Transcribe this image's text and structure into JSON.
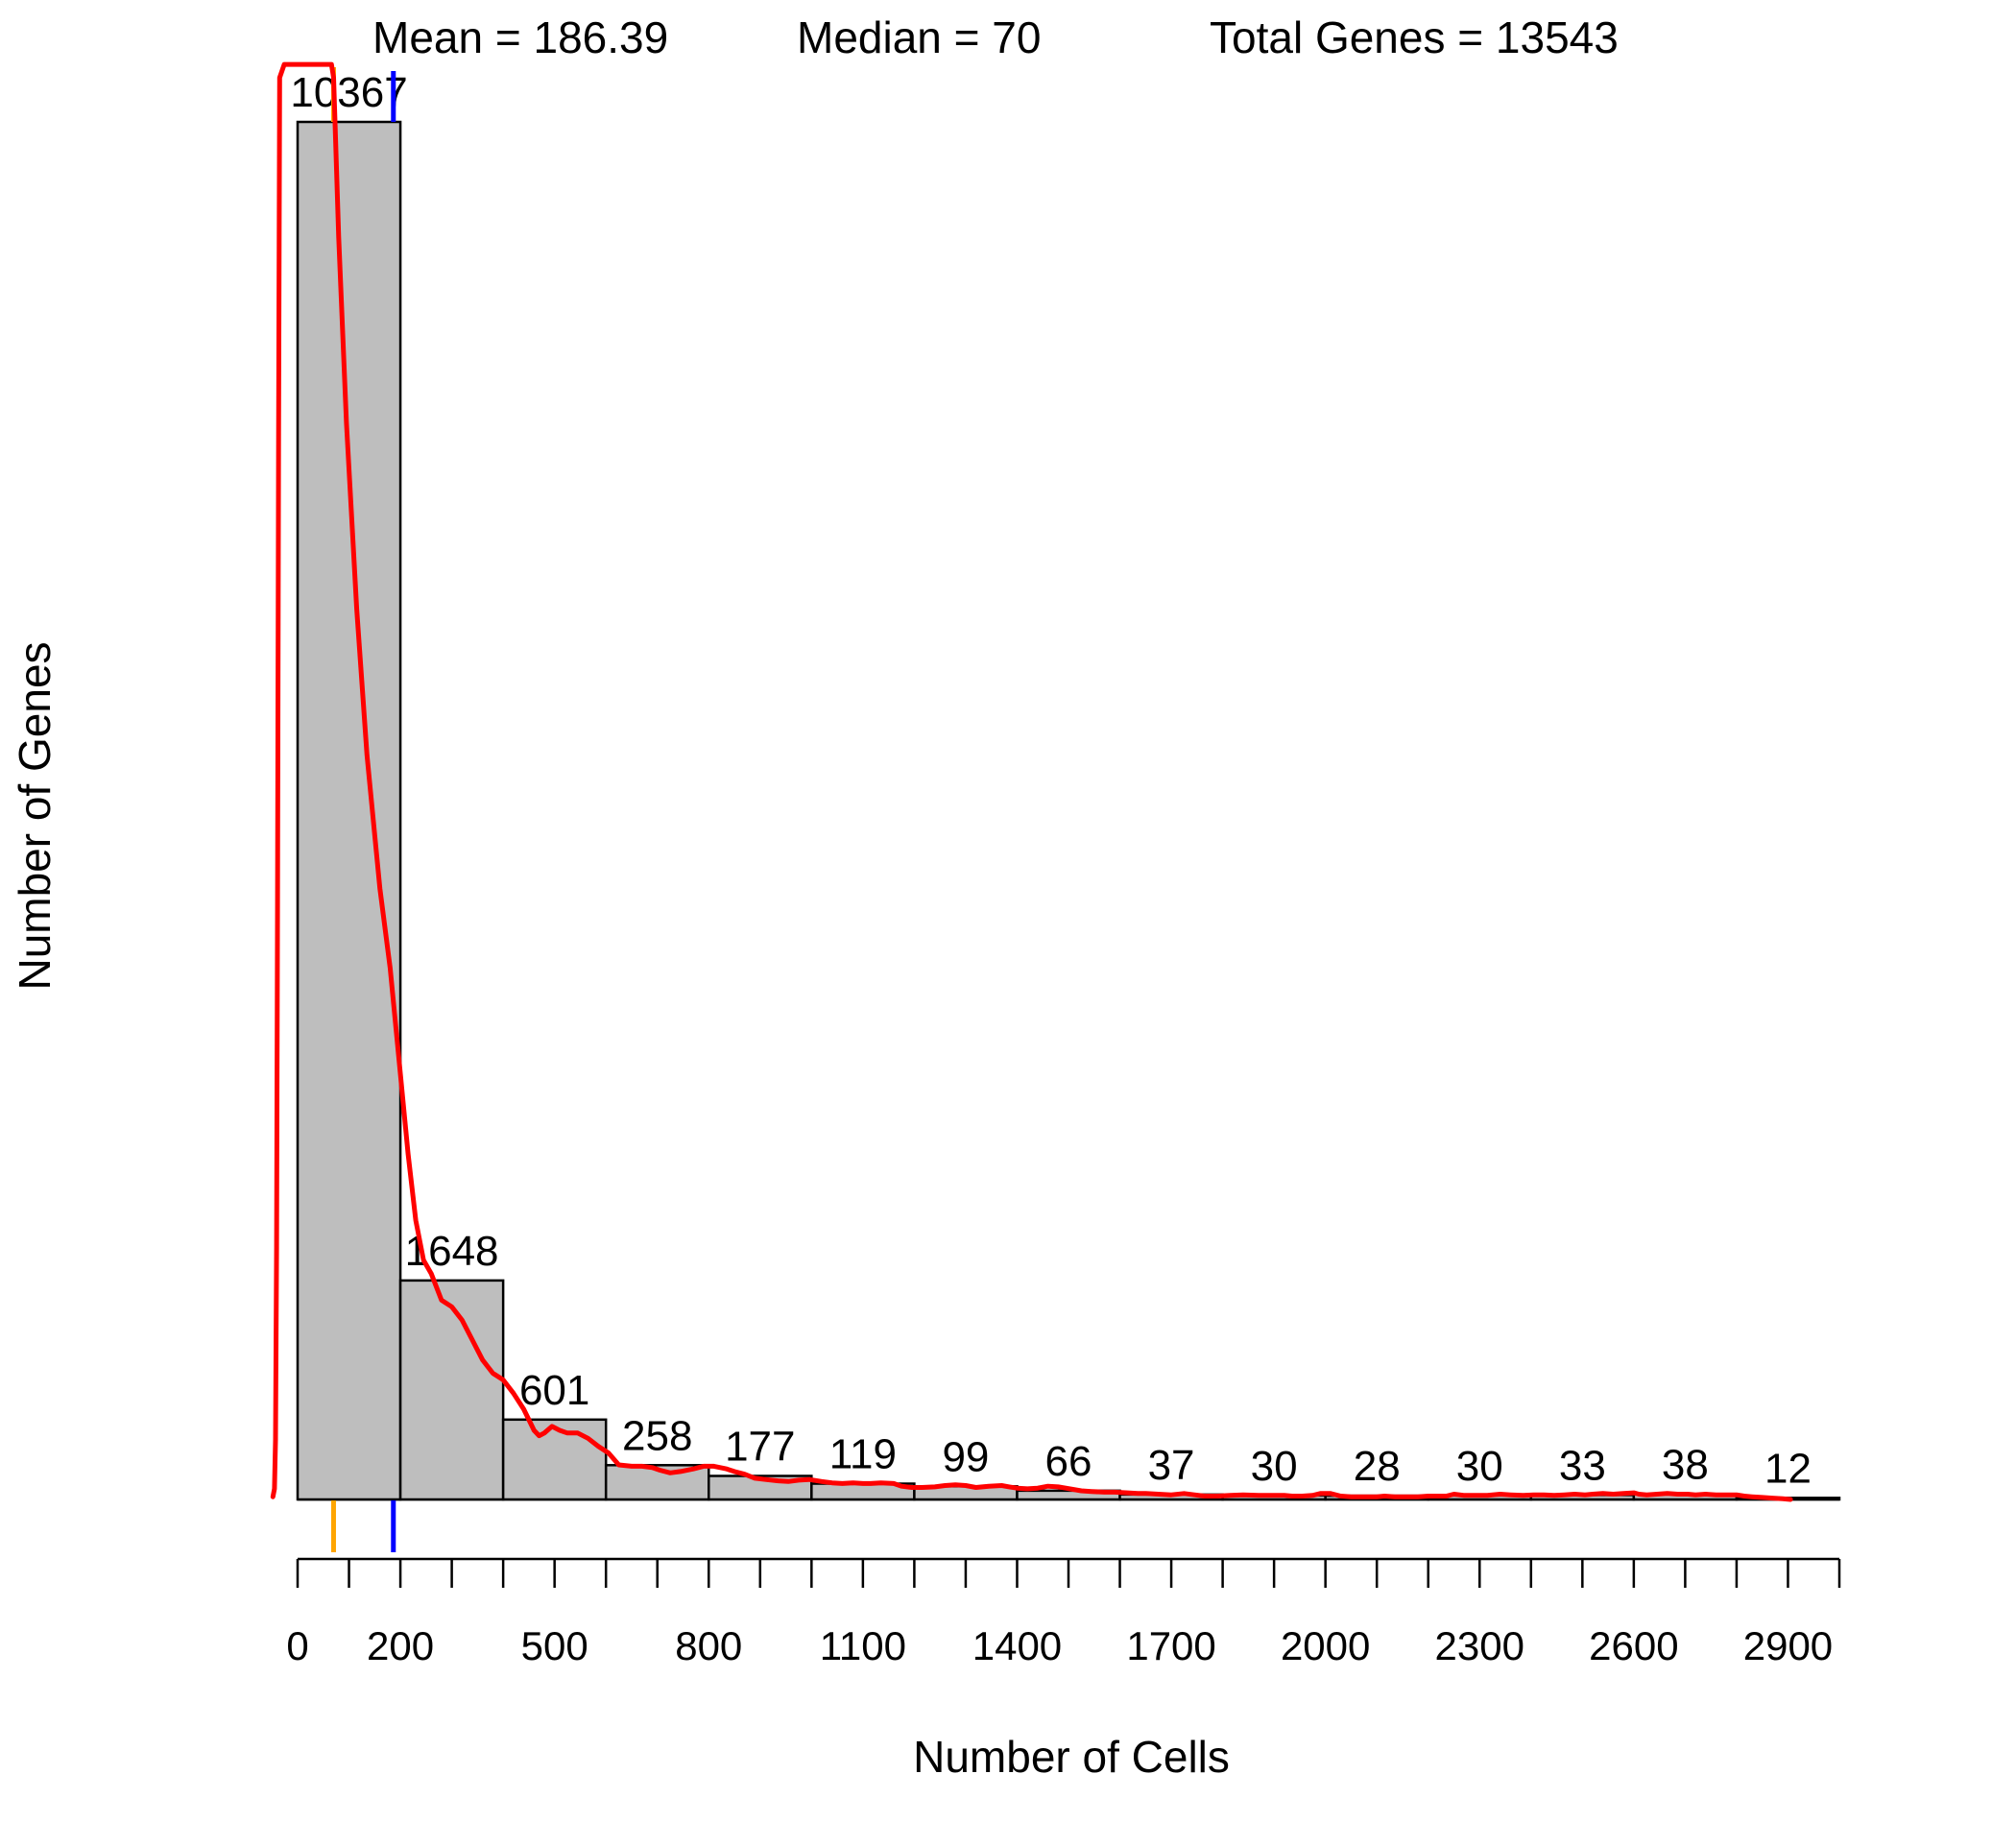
{
  "chart_data": {
    "type": "bar",
    "xlabel": "Number of Cells",
    "ylabel": "Number of Genes",
    "bin_width": 200,
    "bins": [
      {
        "start": 0,
        "end": 200,
        "count": 10367
      },
      {
        "start": 200,
        "end": 400,
        "count": 1648
      },
      {
        "start": 400,
        "end": 600,
        "count": 601
      },
      {
        "start": 600,
        "end": 800,
        "count": 258
      },
      {
        "start": 800,
        "end": 1000,
        "count": 177
      },
      {
        "start": 1000,
        "end": 1200,
        "count": 119
      },
      {
        "start": 1200,
        "end": 1400,
        "count": 99
      },
      {
        "start": 1400,
        "end": 1600,
        "count": 66
      },
      {
        "start": 1600,
        "end": 1800,
        "count": 37
      },
      {
        "start": 1800,
        "end": 2000,
        "count": 30
      },
      {
        "start": 2000,
        "end": 2200,
        "count": 28
      },
      {
        "start": 2200,
        "end": 2400,
        "count": 30
      },
      {
        "start": 2400,
        "end": 2600,
        "count": 33
      },
      {
        "start": 2600,
        "end": 2800,
        "count": 38
      },
      {
        "start": 2800,
        "end": 3000,
        "count": 12
      }
    ],
    "xlim": [
      0,
      3000
    ],
    "ylim": [
      0,
      10367
    ],
    "x_tick_positions": [
      0,
      100,
      200,
      300,
      400,
      500,
      600,
      700,
      800,
      900,
      1000,
      1100,
      1200,
      1300,
      1400,
      1500,
      1600,
      1700,
      1800,
      1900,
      2000,
      2100,
      2200,
      2300,
      2400,
      2500,
      2600,
      2700,
      2800,
      2900,
      3000
    ],
    "x_tick_labels": [
      {
        "value": 0,
        "label": "0"
      },
      {
        "value": 200,
        "label": "200"
      },
      {
        "value": 500,
        "label": "500"
      },
      {
        "value": 800,
        "label": "800"
      },
      {
        "value": 1100,
        "label": "1100"
      },
      {
        "value": 1400,
        "label": "1400"
      },
      {
        "value": 1700,
        "label": "1700"
      },
      {
        "value": 2000,
        "label": "2000"
      },
      {
        "value": 2300,
        "label": "2300"
      },
      {
        "value": 2600,
        "label": "2600"
      },
      {
        "value": 2900,
        "label": "2900"
      }
    ],
    "mean": {
      "value": 186.39,
      "label": "Mean = 186.39",
      "color": "#0000ff"
    },
    "median": {
      "value": 70,
      "label": "Median = 70",
      "color": "#ffa500"
    },
    "total": {
      "label": "Total Genes = 13543",
      "color": "#a020f0"
    },
    "density": {
      "color": "#ff0000",
      "points": [
        [
          -48,
          20
        ],
        [
          -45,
          80
        ],
        [
          -43,
          450
        ],
        [
          -41,
          1900
        ],
        [
          -39,
          4500
        ],
        [
          -37,
          8000
        ],
        [
          -35,
          10700
        ],
        [
          -26,
          10800
        ],
        [
          -23,
          10800
        ],
        [
          66,
          10800
        ],
        [
          70,
          10700
        ],
        [
          80,
          9500
        ],
        [
          95,
          8100
        ],
        [
          115,
          6700
        ],
        [
          135,
          5600
        ],
        [
          160,
          4600
        ],
        [
          180,
          4000
        ],
        [
          200,
          3200
        ],
        [
          215,
          2600
        ],
        [
          230,
          2100
        ],
        [
          245,
          1800
        ],
        [
          260,
          1700
        ],
        [
          280,
          1500
        ],
        [
          300,
          1450
        ],
        [
          320,
          1350
        ],
        [
          340,
          1200
        ],
        [
          360,
          1050
        ],
        [
          380,
          950
        ],
        [
          400,
          900
        ],
        [
          420,
          800
        ],
        [
          440,
          680
        ],
        [
          460,
          520
        ],
        [
          470,
          480
        ],
        [
          480,
          500
        ],
        [
          495,
          550
        ],
        [
          510,
          520
        ],
        [
          525,
          500
        ],
        [
          545,
          500
        ],
        [
          565,
          460
        ],
        [
          585,
          400
        ],
        [
          605,
          350
        ],
        [
          625,
          260
        ],
        [
          650,
          250
        ],
        [
          670,
          250
        ],
        [
          690,
          240
        ],
        [
          705,
          220
        ],
        [
          725,
          200
        ],
        [
          745,
          210
        ],
        [
          770,
          230
        ],
        [
          790,
          250
        ],
        [
          810,
          250
        ],
        [
          835,
          230
        ],
        [
          850,
          210
        ],
        [
          870,
          190
        ],
        [
          890,
          160
        ],
        [
          910,
          150
        ],
        [
          935,
          140
        ],
        [
          955,
          135
        ],
        [
          975,
          145
        ],
        [
          995,
          150
        ],
        [
          1020,
          135
        ],
        [
          1040,
          125
        ],
        [
          1060,
          120
        ],
        [
          1080,
          125
        ],
        [
          1100,
          120
        ],
        [
          1115,
          120
        ],
        [
          1135,
          125
        ],
        [
          1160,
          120
        ],
        [
          1175,
          100
        ],
        [
          1195,
          90
        ],
        [
          1215,
          90
        ],
        [
          1240,
          95
        ],
        [
          1260,
          105
        ],
        [
          1280,
          110
        ],
        [
          1300,
          105
        ],
        [
          1320,
          90
        ],
        [
          1345,
          100
        ],
        [
          1370,
          105
        ],
        [
          1385,
          95
        ],
        [
          1400,
          85
        ],
        [
          1420,
          80
        ],
        [
          1440,
          85
        ],
        [
          1460,
          100
        ],
        [
          1480,
          95
        ],
        [
          1495,
          85
        ],
        [
          1510,
          75
        ],
        [
          1525,
          65
        ],
        [
          1545,
          60
        ],
        [
          1570,
          55
        ],
        [
          1590,
          55
        ],
        [
          1615,
          50
        ],
        [
          1635,
          45
        ],
        [
          1650,
          45
        ],
        [
          1675,
          40
        ],
        [
          1700,
          35
        ],
        [
          1725,
          45
        ],
        [
          1745,
          35
        ],
        [
          1765,
          25
        ],
        [
          1790,
          25
        ],
        [
          1815,
          30
        ],
        [
          1840,
          35
        ],
        [
          1870,
          30
        ],
        [
          1895,
          30
        ],
        [
          1920,
          30
        ],
        [
          1935,
          25
        ],
        [
          1955,
          25
        ],
        [
          1975,
          30
        ],
        [
          1990,
          45
        ],
        [
          2010,
          45
        ],
        [
          2030,
          25
        ],
        [
          2050,
          20
        ],
        [
          2080,
          20
        ],
        [
          2100,
          20
        ],
        [
          2115,
          25
        ],
        [
          2135,
          20
        ],
        [
          2155,
          20
        ],
        [
          2180,
          20
        ],
        [
          2200,
          25
        ],
        [
          2215,
          25
        ],
        [
          2235,
          25
        ],
        [
          2250,
          40
        ],
        [
          2270,
          30
        ],
        [
          2290,
          30
        ],
        [
          2315,
          30
        ],
        [
          2340,
          40
        ],
        [
          2360,
          35
        ],
        [
          2385,
          30
        ],
        [
          2405,
          35
        ],
        [
          2425,
          35
        ],
        [
          2445,
          30
        ],
        [
          2465,
          35
        ],
        [
          2485,
          40
        ],
        [
          2505,
          35
        ],
        [
          2520,
          40
        ],
        [
          2540,
          45
        ],
        [
          2560,
          40
        ],
        [
          2580,
          45
        ],
        [
          2600,
          50
        ],
        [
          2610,
          40
        ],
        [
          2625,
          35
        ],
        [
          2645,
          40
        ],
        [
          2665,
          45
        ],
        [
          2685,
          40
        ],
        [
          2705,
          40
        ],
        [
          2720,
          35
        ],
        [
          2740,
          40
        ],
        [
          2760,
          35
        ],
        [
          2780,
          35
        ],
        [
          2800,
          35
        ],
        [
          2815,
          25
        ],
        [
          2830,
          20
        ],
        [
          2850,
          15
        ],
        [
          2870,
          10
        ],
        [
          2890,
          5
        ],
        [
          2905,
          0
        ]
      ]
    }
  }
}
